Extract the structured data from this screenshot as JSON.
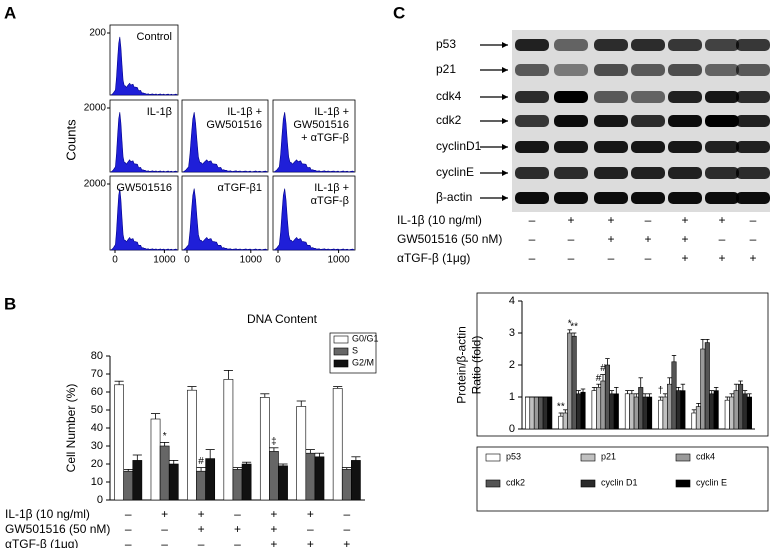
{
  "panel_letters": [
    "A",
    "B",
    "C"
  ],
  "panel_a": {
    "y_label": "Counts",
    "xticks": [
      0,
      1000
    ],
    "rows": [
      {
        "ytick": 200,
        "plots": [
          [
            "Control"
          ]
        ]
      },
      {
        "ytick": 2000,
        "plots": [
          [
            "IL-1β"
          ],
          [
            "IL-1β +",
            "GW501516"
          ],
          [
            "IL-1β +",
            "GW501516",
            "+ αTGF-β"
          ]
        ]
      },
      {
        "ytick": 2000,
        "plots": [
          [
            "GW501516"
          ],
          [
            "αTGF-β1"
          ],
          [
            "IL-1β +",
            "αTGF-β"
          ]
        ]
      }
    ]
  },
  "panel_c_blot": {
    "proteins": [
      "p53",
      "p21",
      "cdk4",
      "cdk2",
      "cyclinD1",
      "cyclinE",
      "β-actin"
    ],
    "treatments": [
      {
        "label": "IL-1β (10 ng/ml)",
        "signs": [
          "–",
          "+",
          "+",
          "–",
          "+",
          "+",
          "–"
        ]
      },
      {
        "label": "GW501516 (50 nM)",
        "signs": [
          "–",
          "–",
          "+",
          "+",
          "+",
          "–",
          "–"
        ]
      },
      {
        "label": "αTGF-β (1μg)",
        "signs": [
          "–",
          "–",
          "–",
          "–",
          "+",
          "+",
          "+"
        ]
      }
    ]
  },
  "chart_data": [
    {
      "type": "bar",
      "title": "DNA Content",
      "y_label": [
        "Cell Number (%)"
      ],
      "ylim": [
        0,
        80
      ],
      "yticks": [
        0,
        10,
        20,
        30,
        40,
        50,
        60,
        70,
        80
      ],
      "series": [
        {
          "name": "G0/G1",
          "color": "#ffffff",
          "values": [
            64,
            45,
            61,
            67,
            57,
            52,
            62
          ],
          "errors": [
            2,
            3,
            2,
            5,
            2,
            3,
            1
          ],
          "annotations": [
            null,
            null,
            null,
            null,
            null,
            null,
            null
          ]
        },
        {
          "name": "S",
          "color": "#666666",
          "values": [
            16,
            30,
            16,
            17,
            27,
            26,
            17
          ],
          "errors": [
            1,
            2,
            2,
            1,
            2,
            2,
            1
          ],
          "annotations": [
            null,
            "*",
            "#",
            null,
            "‡",
            null,
            null
          ]
        },
        {
          "name": "G2/M",
          "color": "#111111",
          "values": [
            22,
            20,
            23,
            20,
            19,
            24,
            22
          ],
          "errors": [
            3,
            2,
            5,
            1,
            1,
            2,
            2
          ],
          "annotations": [
            null,
            null,
            null,
            null,
            null,
            null,
            null
          ]
        }
      ],
      "treatments": [
        {
          "label": "IL-1β (10 ng/ml)",
          "signs": [
            "–",
            "+",
            "+",
            "–",
            "+",
            "+",
            "–"
          ]
        },
        {
          "label": "GW501516 (50 nM)",
          "signs": [
            "–",
            "–",
            "+",
            "+",
            "+",
            "–",
            "–"
          ]
        },
        {
          "label": "αTGF-β (1μg)",
          "signs": [
            "–",
            "–",
            "–",
            "–",
            "+",
            "+",
            "+"
          ]
        }
      ]
    },
    {
      "type": "bar",
      "y_label": [
        "Protein/β-actin",
        "Ratio (fold)"
      ],
      "ylim": [
        0,
        4
      ],
      "yticks": [
        0,
        1,
        2,
        3,
        4
      ],
      "series": [
        {
          "name": "p53",
          "color": "#ffffff",
          "values": [
            1,
            0.4,
            1.2,
            1.1,
            0.9,
            0.5,
            0.9
          ],
          "errors": [
            0,
            0.1,
            0.1,
            0.1,
            0.1,
            0.1,
            0.1
          ],
          "annotations": [
            null,
            "**",
            null,
            null,
            "†",
            null,
            null
          ]
        },
        {
          "name": "p21",
          "color": "#c0c0c0",
          "values": [
            1,
            0.5,
            1.3,
            1.1,
            1,
            0.7,
            1
          ],
          "errors": [
            0,
            0.1,
            0.1,
            0.1,
            0.1,
            0.1,
            0.1
          ],
          "annotations": [
            null,
            null,
            "#",
            null,
            null,
            null,
            null
          ]
        },
        {
          "name": "cdk4",
          "color": "#9a9a9a",
          "values": [
            1,
            3,
            1.5,
            1,
            1.4,
            2.5,
            1.2
          ],
          "errors": [
            0,
            0.1,
            0.2,
            0.1,
            0.2,
            0.3,
            0.2
          ],
          "annotations": [
            null,
            "*",
            "#",
            null,
            null,
            null,
            null
          ]
        },
        {
          "name": "cdk2",
          "color": "#555555",
          "values": [
            1,
            2.9,
            2,
            1.3,
            2.1,
            2.7,
            1.4
          ],
          "errors": [
            0,
            0.1,
            0.2,
            0.3,
            0.2,
            0.1,
            0.1
          ],
          "annotations": [
            null,
            "**",
            null,
            null,
            null,
            null,
            null
          ]
        },
        {
          "name": "cyclin D1",
          "color": "#2a2a2a",
          "values": [
            1,
            1.1,
            1.1,
            1,
            1.2,
            1.1,
            1.1
          ],
          "errors": [
            0,
            0.1,
            0.1,
            0.1,
            0.1,
            0.1,
            0.1
          ],
          "annotations": [
            null,
            null,
            null,
            null,
            null,
            null,
            null
          ]
        },
        {
          "name": "cyclin E",
          "color": "#000000",
          "values": [
            1,
            1.15,
            1.1,
            1,
            1.2,
            1.2,
            1
          ],
          "errors": [
            0,
            0.1,
            0.2,
            0.1,
            0.2,
            0.1,
            0.1
          ],
          "annotations": [
            null,
            null,
            null,
            null,
            null,
            null,
            null
          ]
        }
      ]
    }
  ]
}
